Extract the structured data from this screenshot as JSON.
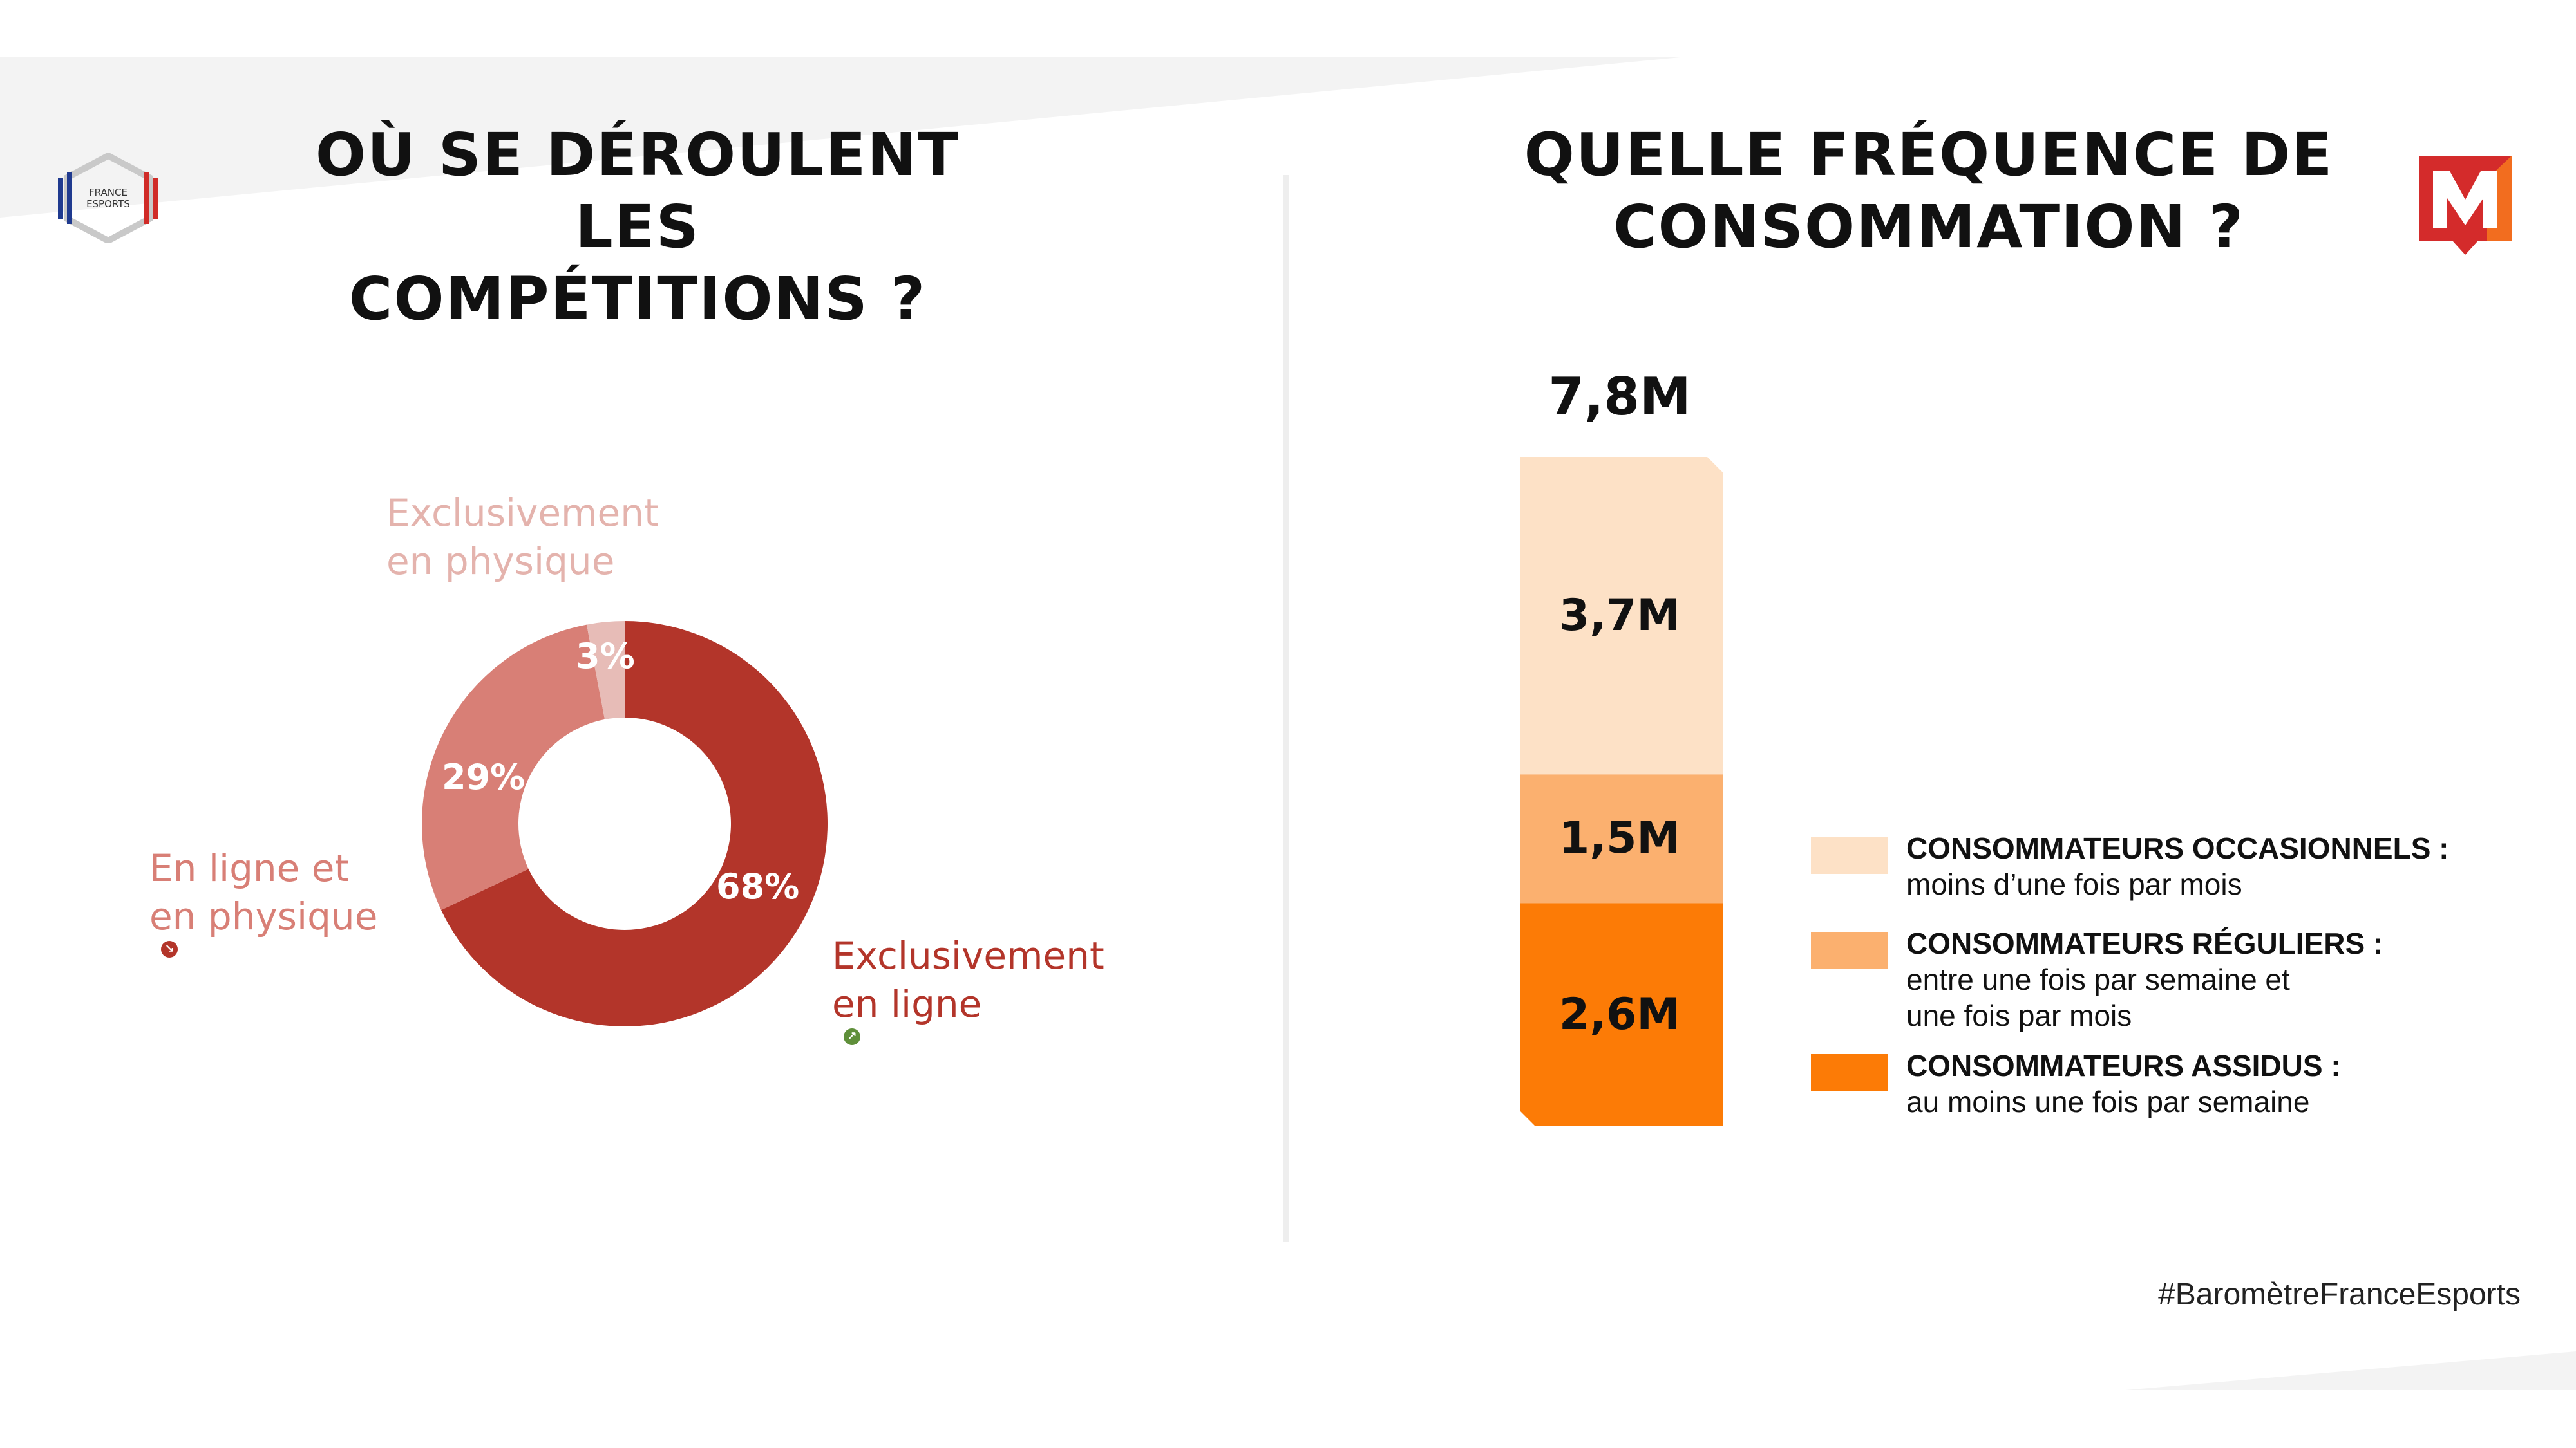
{
  "colors": {
    "online": "#b3352a",
    "both": "#d87f76",
    "physical": "#e7bcb7",
    "occasional": "#fde1c6",
    "regular": "#fbb06f",
    "assidus": "#fc7b06",
    "arrow_up": "#5f8f3a",
    "arrow_down": "#b3352a"
  },
  "left_panel": {
    "title_line1": "OÙ SE DÉROULENT LES",
    "title_line2": "COMPÉTITIONS ?",
    "logo_text_1": "FRANCE",
    "logo_text_2": "ESPORTS"
  },
  "right_panel": {
    "title_line1": "QUELLE FRÉQUENCE DE",
    "title_line2": "CONSOMMATION ?"
  },
  "footer": {
    "hashtag": "#BaromètreFranceEsports"
  },
  "chart_data": [
    {
      "type": "pie",
      "variant": "donut",
      "slices": [
        {
          "label_line1": "Exclusivement",
          "label_line2": "en ligne",
          "value": 68,
          "display": "68%",
          "trend_icon": "arrow-up-icon"
        },
        {
          "label_line1": "En ligne et",
          "label_line2": "en physique",
          "value": 29,
          "display": "29%",
          "trend_icon": "arrow-down-icon"
        },
        {
          "label_line1": "Exclusivement",
          "label_line2": "en physique",
          "value": 3,
          "display": "3%"
        }
      ]
    },
    {
      "type": "bar",
      "variant": "stacked",
      "total_display": "7,8M",
      "total": 7.8,
      "segments": [
        {
          "key": "occasional",
          "value": 3.7,
          "display": "3,7M",
          "legend_title": "CONSOMMATEURS OCCASIONNELS :",
          "legend_desc": [
            "moins d’une fois par mois"
          ]
        },
        {
          "key": "regular",
          "value": 1.5,
          "display": "1,5M",
          "legend_title": "CONSOMMATEURS RÉGULIERS :",
          "legend_desc": [
            "entre une fois par semaine et",
            "une fois par mois"
          ]
        },
        {
          "key": "assidus",
          "value": 2.6,
          "display": "2,6M",
          "legend_title": "CONSOMMATEURS ASSIDUS :",
          "legend_desc": [
            "au moins une fois par semaine"
          ]
        }
      ]
    }
  ]
}
